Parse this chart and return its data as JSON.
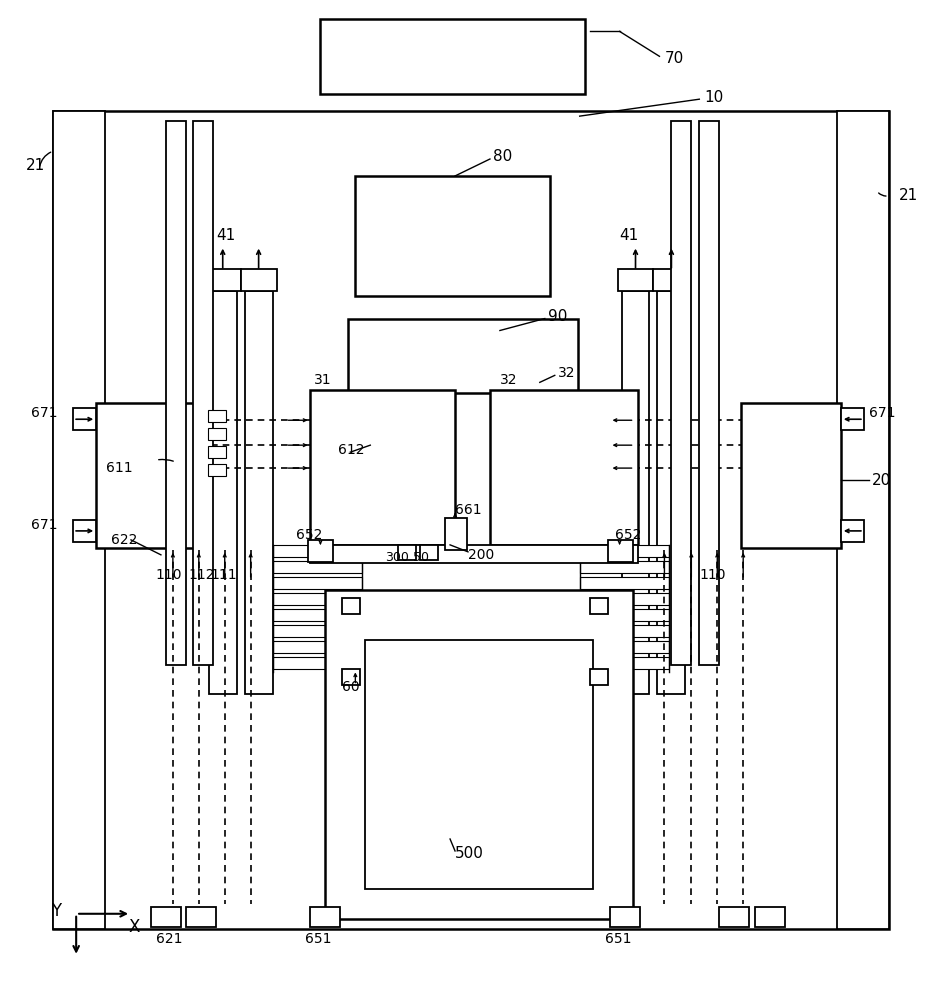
{
  "bg_color": "#ffffff",
  "line_color": "#000000",
  "fig_width": 9.42,
  "fig_height": 10.0
}
